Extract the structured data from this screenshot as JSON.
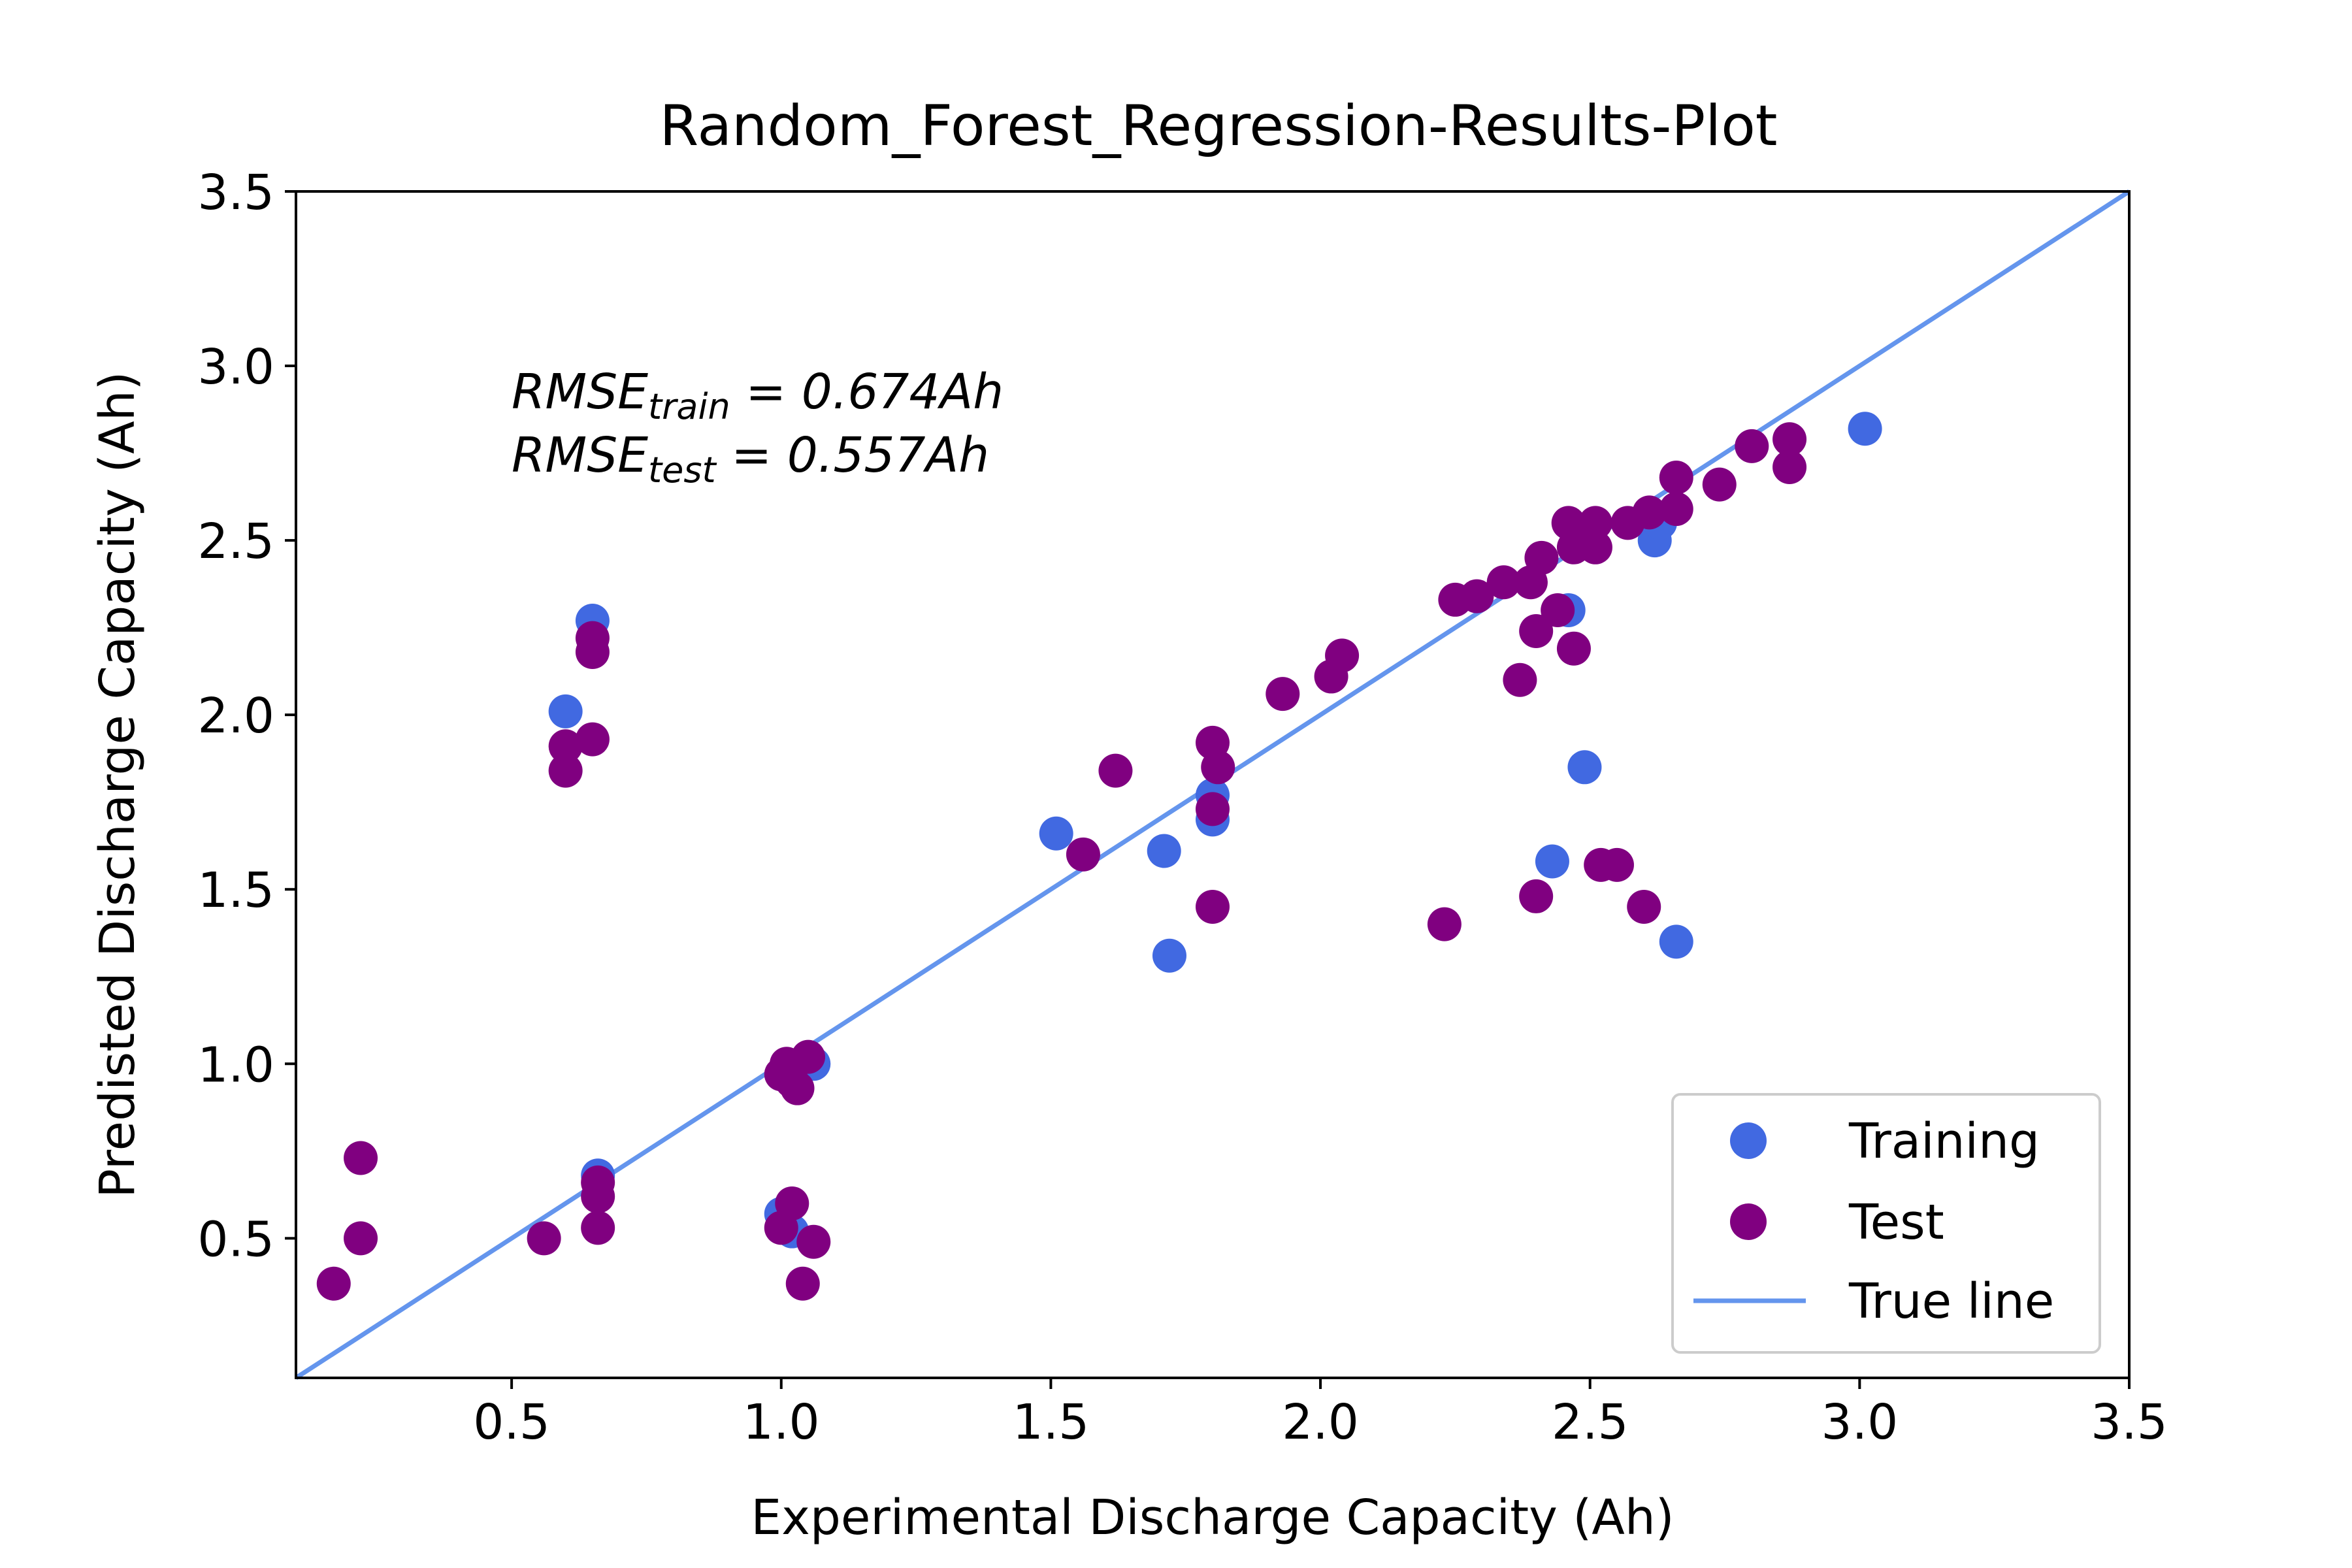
{
  "chart_data": {
    "type": "scatter",
    "title": "Random_Forest_Regression-Results-Plot",
    "xlabel": "Experimental Discharge Capacity (Ah)",
    "ylabel": "Predisted Discharge Capacity (Ah)",
    "xlim": [
      0.1,
      3.5
    ],
    "ylim": [
      0.1,
      3.5
    ],
    "xticks": [
      "0.5",
      "1.0",
      "1.5",
      "2.0",
      "2.5",
      "3.0",
      "3.5"
    ],
    "yticks": [
      "0.5",
      "1.0",
      "1.5",
      "2.0",
      "2.5",
      "3.0",
      "3.5"
    ],
    "grid": false,
    "legend_position": "lower-right",
    "annotations": {
      "train_prefix": "RMSE",
      "train_sub": "train",
      "train_value": " = 0.674Ah",
      "test_prefix": "RMSE",
      "test_sub": "test",
      "test_value": " = 0.557Ah"
    },
    "true_line": {
      "name": "True line",
      "color": "#6495ED",
      "points": [
        [
          0.1,
          0.1
        ],
        [
          3.5,
          3.5
        ]
      ]
    },
    "series": [
      {
        "name": "Training",
        "color": "#4169E1",
        "points": [
          [
            0.65,
            2.27
          ],
          [
            0.6,
            2.01
          ],
          [
            0.66,
            0.68
          ],
          [
            1.0,
            0.57
          ],
          [
            1.02,
            0.52
          ],
          [
            1.06,
            1.0
          ],
          [
            1.51,
            1.66
          ],
          [
            1.71,
            1.61
          ],
          [
            1.72,
            1.31
          ],
          [
            1.8,
            1.77
          ],
          [
            1.8,
            1.7
          ],
          [
            2.43,
            1.58
          ],
          [
            2.46,
            2.3
          ],
          [
            2.49,
            1.85
          ],
          [
            2.62,
            2.5
          ],
          [
            2.63,
            2.55
          ],
          [
            2.66,
            1.35
          ],
          [
            3.01,
            2.82
          ]
        ]
      },
      {
        "name": "Test",
        "color": "#800080",
        "points": [
          [
            0.17,
            0.37
          ],
          [
            0.22,
            0.73
          ],
          [
            0.22,
            0.5
          ],
          [
            0.56,
            0.5
          ],
          [
            0.6,
            1.91
          ],
          [
            0.6,
            1.84
          ],
          [
            0.65,
            2.22
          ],
          [
            0.65,
            2.18
          ],
          [
            0.65,
            1.93
          ],
          [
            0.66,
            0.66
          ],
          [
            0.66,
            0.62
          ],
          [
            0.66,
            0.53
          ],
          [
            1.0,
            0.97
          ],
          [
            1.01,
            1.0
          ],
          [
            1.02,
            0.95
          ],
          [
            1.03,
            0.93
          ],
          [
            1.05,
            1.02
          ],
          [
            1.0,
            0.53
          ],
          [
            1.02,
            0.6
          ],
          [
            1.04,
            0.37
          ],
          [
            1.06,
            0.49
          ],
          [
            1.56,
            1.6
          ],
          [
            1.62,
            1.84
          ],
          [
            1.8,
            1.92
          ],
          [
            1.81,
            1.85
          ],
          [
            1.8,
            1.73
          ],
          [
            1.8,
            1.45
          ],
          [
            1.93,
            2.06
          ],
          [
            2.02,
            2.11
          ],
          [
            2.04,
            2.17
          ],
          [
            2.23,
            1.4
          ],
          [
            2.25,
            2.33
          ],
          [
            2.29,
            2.34
          ],
          [
            2.34,
            2.38
          ],
          [
            2.37,
            2.1
          ],
          [
            2.39,
            2.38
          ],
          [
            2.4,
            2.24
          ],
          [
            2.4,
            1.48
          ],
          [
            2.41,
            2.45
          ],
          [
            2.44,
            2.3
          ],
          [
            2.46,
            2.55
          ],
          [
            2.47,
            2.19
          ],
          [
            2.47,
            2.48
          ],
          [
            2.5,
            2.52
          ],
          [
            2.51,
            2.48
          ],
          [
            2.51,
            2.55
          ],
          [
            2.52,
            1.57
          ],
          [
            2.55,
            1.57
          ],
          [
            2.57,
            2.55
          ],
          [
            2.6,
            1.45
          ],
          [
            2.61,
            2.58
          ],
          [
            2.66,
            2.68
          ],
          [
            2.66,
            2.59
          ],
          [
            2.74,
            2.66
          ],
          [
            2.8,
            2.77
          ],
          [
            2.87,
            2.79
          ],
          [
            2.87,
            2.71
          ]
        ]
      }
    ]
  }
}
